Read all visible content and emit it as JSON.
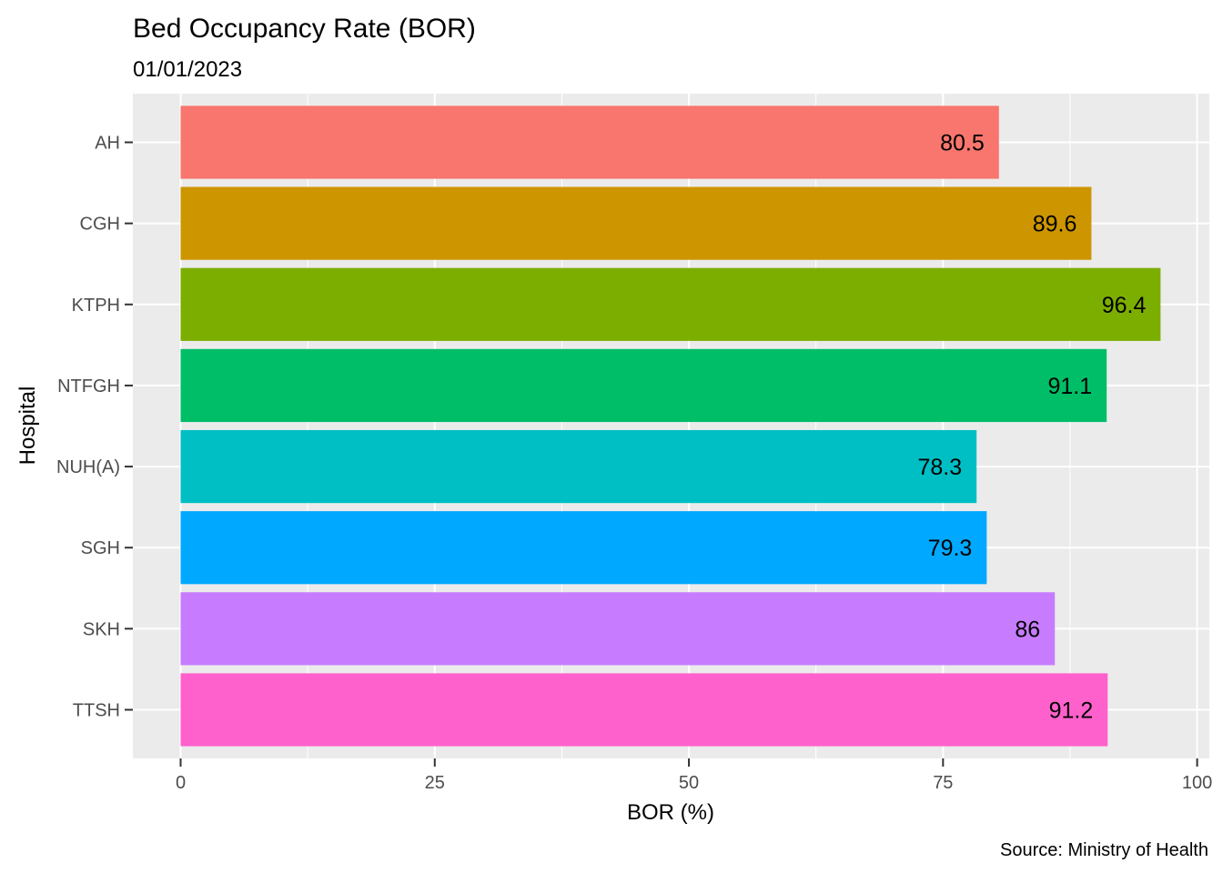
{
  "chart_data": {
    "type": "bar",
    "orientation": "horizontal",
    "title": "Bed Occupancy Rate (BOR)",
    "subtitle": "01/01/2023",
    "caption": "Source: Ministry of Health",
    "xlabel": "BOR (%)",
    "ylabel": "Hospital",
    "xlim": [
      -4.7,
      101.2
    ],
    "x_ticks": [
      0,
      25,
      50,
      75,
      100
    ],
    "grid": true,
    "legend": "none",
    "categories": [
      "AH",
      "CGH",
      "KTPH",
      "NTFGH",
      "NUH(A)",
      "SGH",
      "SKH",
      "TTSH"
    ],
    "values": [
      80.5,
      89.6,
      96.4,
      91.1,
      78.3,
      79.3,
      86,
      91.2
    ],
    "data_labels": [
      "80.5",
      "89.6",
      "96.4",
      "91.1",
      "78.3",
      "79.3",
      "86",
      "91.2"
    ],
    "colors": [
      "#F8766D",
      "#CD9600",
      "#7CAE00",
      "#00BE67",
      "#00BFC4",
      "#00A9FF",
      "#C77CFF",
      "#FF61CC"
    ],
    "panel_background": "#EBEBEB",
    "grid_color": "#FFFFFF"
  }
}
